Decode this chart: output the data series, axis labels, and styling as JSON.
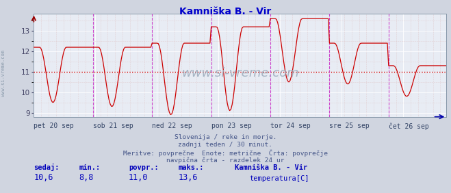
{
  "title": "Kamniška B. - Vir",
  "title_color": "#0000cc",
  "bg_color": "#d0d5e0",
  "plot_bg_color": "#e8ecf4",
  "line_color": "#cc0000",
  "grid_color_major": "#ffffff",
  "vline_color": "#cc44cc",
  "hline_avg_color": "#cc0000",
  "ylabel_color": "#444466",
  "xlabel_color": "#334466",
  "ylim": [
    8.8,
    13.85
  ],
  "yticks": [
    9,
    10,
    11,
    12,
    13
  ],
  "avg_value": 11.0,
  "days": [
    "pet 20 sep",
    "sob 21 sep",
    "ned 22 sep",
    "pon 23 sep",
    "tor 24 sep",
    "sre 25 sep",
    "čet 26 sep"
  ],
  "day_positions": [
    0,
    48,
    96,
    144,
    192,
    240,
    288
  ],
  "total_points": 336,
  "subtitle_lines": [
    "Slovenija / reke in morje.",
    "zadnji teden / 30 minut.",
    "Meritve: povprečne  Enote: metrične  Črta: povprečje",
    "navpična črta - razdelek 24 ur"
  ],
  "subtitle_color": "#445588",
  "stats_labels": [
    "sedaj:",
    "min.:",
    "povpr.:",
    "maks.:"
  ],
  "stats_values": [
    "10,6",
    "8,8",
    "11,0",
    "13,6"
  ],
  "stats_color": "#0000bb",
  "legend_label": "Kamniška B. - Vir",
  "legend_sublabel": "temperatura[C]",
  "legend_color": "#cc0000",
  "watermark": "www.si-vreme.com",
  "watermark_color": "#9aaabb",
  "left_label": "www.si-vreme.com",
  "left_label_color": "#8899aa"
}
